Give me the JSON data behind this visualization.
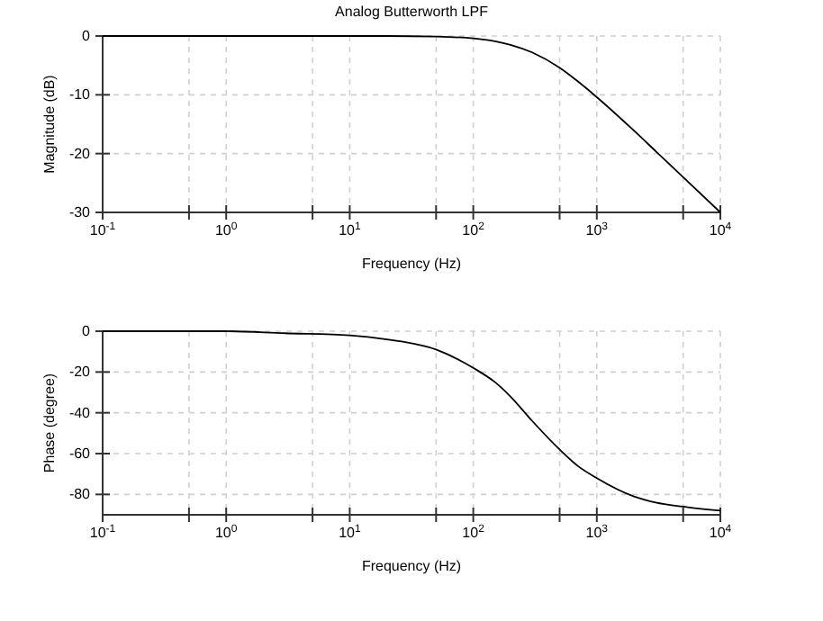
{
  "chart_data": [
    {
      "type": "line",
      "title": "Analog Butterworth LPF",
      "xlabel": "Frequency (Hz)",
      "ylabel": "Magnitude (dB)",
      "log": "x",
      "grid": true,
      "marker": "none",
      "line_style": "solid",
      "x": [
        0.1,
        1,
        10,
        20,
        50,
        100,
        150,
        200,
        300,
        500,
        700,
        1000,
        2000,
        3000,
        5000,
        10000
      ],
      "series": [
        {
          "color": "#000000",
          "values": [
            0,
            0,
            0,
            0,
            -0.1,
            -0.4,
            -0.9,
            -1.5,
            -2.8,
            -5.4,
            -7.7,
            -10.4,
            -16.1,
            -19.6,
            -24,
            -30
          ]
        }
      ],
      "xlim": [
        0.1,
        10000
      ],
      "ylim": [
        -30,
        0
      ],
      "xticks": [
        {
          "value": 0.1,
          "label": "10$^{-1}$"
        },
        {
          "value": 0.5,
          "label": null
        },
        {
          "value": 1,
          "label": "10$^{0}$"
        },
        {
          "value": 5,
          "label": null
        },
        {
          "value": 10,
          "label": "10$^{1}$"
        },
        {
          "value": 50,
          "label": null
        },
        {
          "value": 100,
          "label": "10$^{2}$"
        },
        {
          "value": 500,
          "label": null
        },
        {
          "value": 1000,
          "label": "10$^{3}$"
        },
        {
          "value": 5000,
          "label": null
        },
        {
          "value": 10000,
          "label": "10$^{4}$"
        }
      ],
      "yticks": [
        -30,
        -20,
        -10,
        0
      ]
    },
    {
      "type": "line",
      "xlabel": "Frequency (Hz)",
      "ylabel": "Phase (degree)",
      "log": "x",
      "grid": true,
      "marker": "none",
      "line_style": "solid",
      "x": [
        0.1,
        1,
        3,
        10,
        20,
        50,
        100,
        150,
        200,
        300,
        500,
        700,
        1000,
        2000,
        3000,
        5000,
        10000
      ],
      "series": [
        {
          "color": "#000000",
          "values": [
            0,
            0,
            -1,
            -2,
            -4,
            -9,
            -18,
            -25,
            -32,
            -44,
            -58,
            -66,
            -72,
            -81,
            -84,
            -86,
            -88
          ]
        }
      ],
      "xlim": [
        0.1,
        10000
      ],
      "ylim": [
        -90,
        0
      ],
      "xticks": [
        {
          "value": 0.1,
          "label": "10$^{-1}$"
        },
        {
          "value": 0.5,
          "label": null
        },
        {
          "value": 1,
          "label": "10$^{0}$"
        },
        {
          "value": 5,
          "label": null
        },
        {
          "value": 10,
          "label": "10$^{1}$"
        },
        {
          "value": 50,
          "label": null
        },
        {
          "value": 100,
          "label": "10$^{2}$"
        },
        {
          "value": 500,
          "label": null
        },
        {
          "value": 1000,
          "label": "10$^{3}$"
        },
        {
          "value": 5000,
          "label": null
        },
        {
          "value": 10000,
          "label": "10$^{4}$"
        }
      ],
      "yticks": [
        -80,
        -60,
        -40,
        -20,
        0
      ]
    }
  ]
}
